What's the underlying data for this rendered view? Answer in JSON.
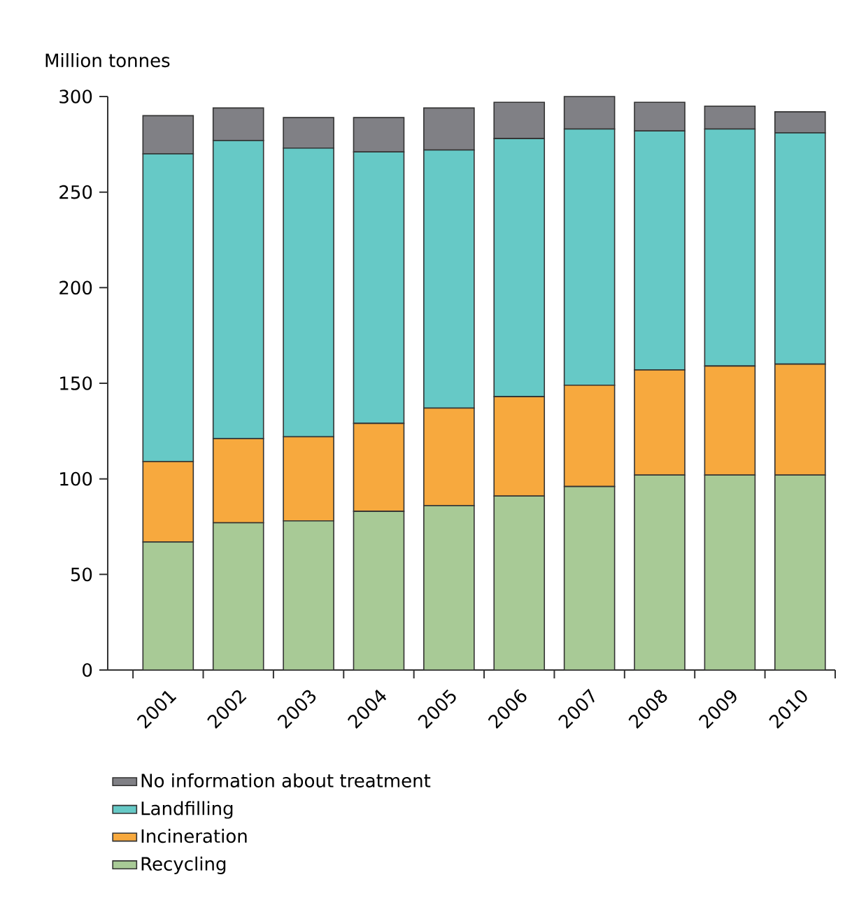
{
  "chart_data": {
    "type": "bar",
    "stacked": true,
    "ylabel": "Million tonnes",
    "categories": [
      "2001",
      "2002",
      "2003",
      "2004",
      "2005",
      "2006",
      "2007",
      "2008",
      "2009",
      "2010"
    ],
    "series": [
      {
        "name": "Recycling",
        "color": "#a8ca96",
        "values": [
          67,
          77,
          78,
          83,
          86,
          91,
          96,
          102,
          102,
          102
        ]
      },
      {
        "name": "Incineration",
        "color": "#f7a93e",
        "values": [
          42,
          44,
          44,
          46,
          51,
          52,
          53,
          55,
          57,
          58
        ]
      },
      {
        "name": "Landfilling",
        "color": "#66c9c6",
        "values": [
          161,
          156,
          151,
          142,
          135,
          135,
          134,
          125,
          124,
          121
        ]
      },
      {
        "name": "No information about treatment",
        "color": "#808085",
        "values": [
          20,
          17,
          16,
          18,
          22,
          19,
          17,
          15,
          12,
          11
        ]
      }
    ],
    "ylim": [
      0,
      300
    ],
    "yticks": [
      0,
      50,
      100,
      150,
      200,
      250,
      300
    ],
    "legend": "bottom"
  }
}
